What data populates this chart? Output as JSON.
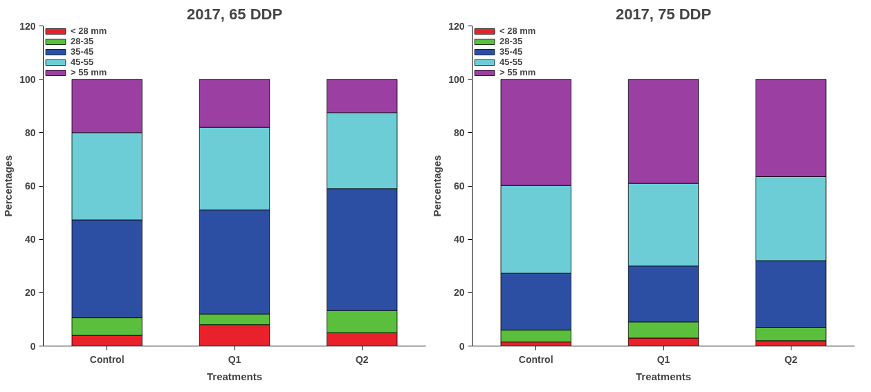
{
  "chart_data": [
    {
      "type": "bar",
      "stacked": true,
      "title": "2017, 65 DDP",
      "xlabel": "Treatments",
      "ylabel": "Percentages",
      "categories": [
        "Control",
        "Q1",
        "Q2"
      ],
      "ylim": [
        0,
        120
      ],
      "yticks": [
        0,
        20,
        40,
        60,
        80,
        100,
        120
      ],
      "grid": false,
      "legend": "top left",
      "series": [
        {
          "name": "< 28 mm",
          "color": "#e8212a",
          "values": [
            4,
            8,
            5
          ]
        },
        {
          "name": "28-35",
          "color": "#5abf3c",
          "values": [
            6.6,
            4,
            8.3
          ]
        },
        {
          "name": "35-45",
          "color": "#2d4fa3",
          "values": [
            36.7,
            39,
            45.7
          ]
        },
        {
          "name": "45-55",
          "color": "#6ccdd6",
          "values": [
            32.7,
            31,
            28.5
          ]
        },
        {
          "name": "> 55 mm",
          "color": "#9b3fa3",
          "values": [
            20,
            18,
            12.5
          ]
        }
      ]
    },
    {
      "type": "bar",
      "stacked": true,
      "title": "2017, 75 DDP",
      "xlabel": "Treatments",
      "ylabel": "Percentages",
      "categories": [
        "Control",
        "Q1",
        "Q2"
      ],
      "ylim": [
        0,
        120
      ],
      "yticks": [
        0,
        20,
        40,
        60,
        80,
        100,
        120
      ],
      "grid": false,
      "legend": "top left",
      "series": [
        {
          "name": "< 28 mm",
          "color": "#e8212a",
          "values": [
            1.5,
            3,
            2
          ]
        },
        {
          "name": "28-35",
          "color": "#5abf3c",
          "values": [
            4.5,
            6,
            5
          ]
        },
        {
          "name": "35-45",
          "color": "#2d4fa3",
          "values": [
            21.3,
            21,
            25
          ]
        },
        {
          "name": "45-55",
          "color": "#6ccdd6",
          "values": [
            32.9,
            31,
            31.5
          ]
        },
        {
          "name": "> 55 mm",
          "color": "#9b3fa3",
          "values": [
            39.8,
            39,
            36.5
          ]
        }
      ]
    }
  ]
}
